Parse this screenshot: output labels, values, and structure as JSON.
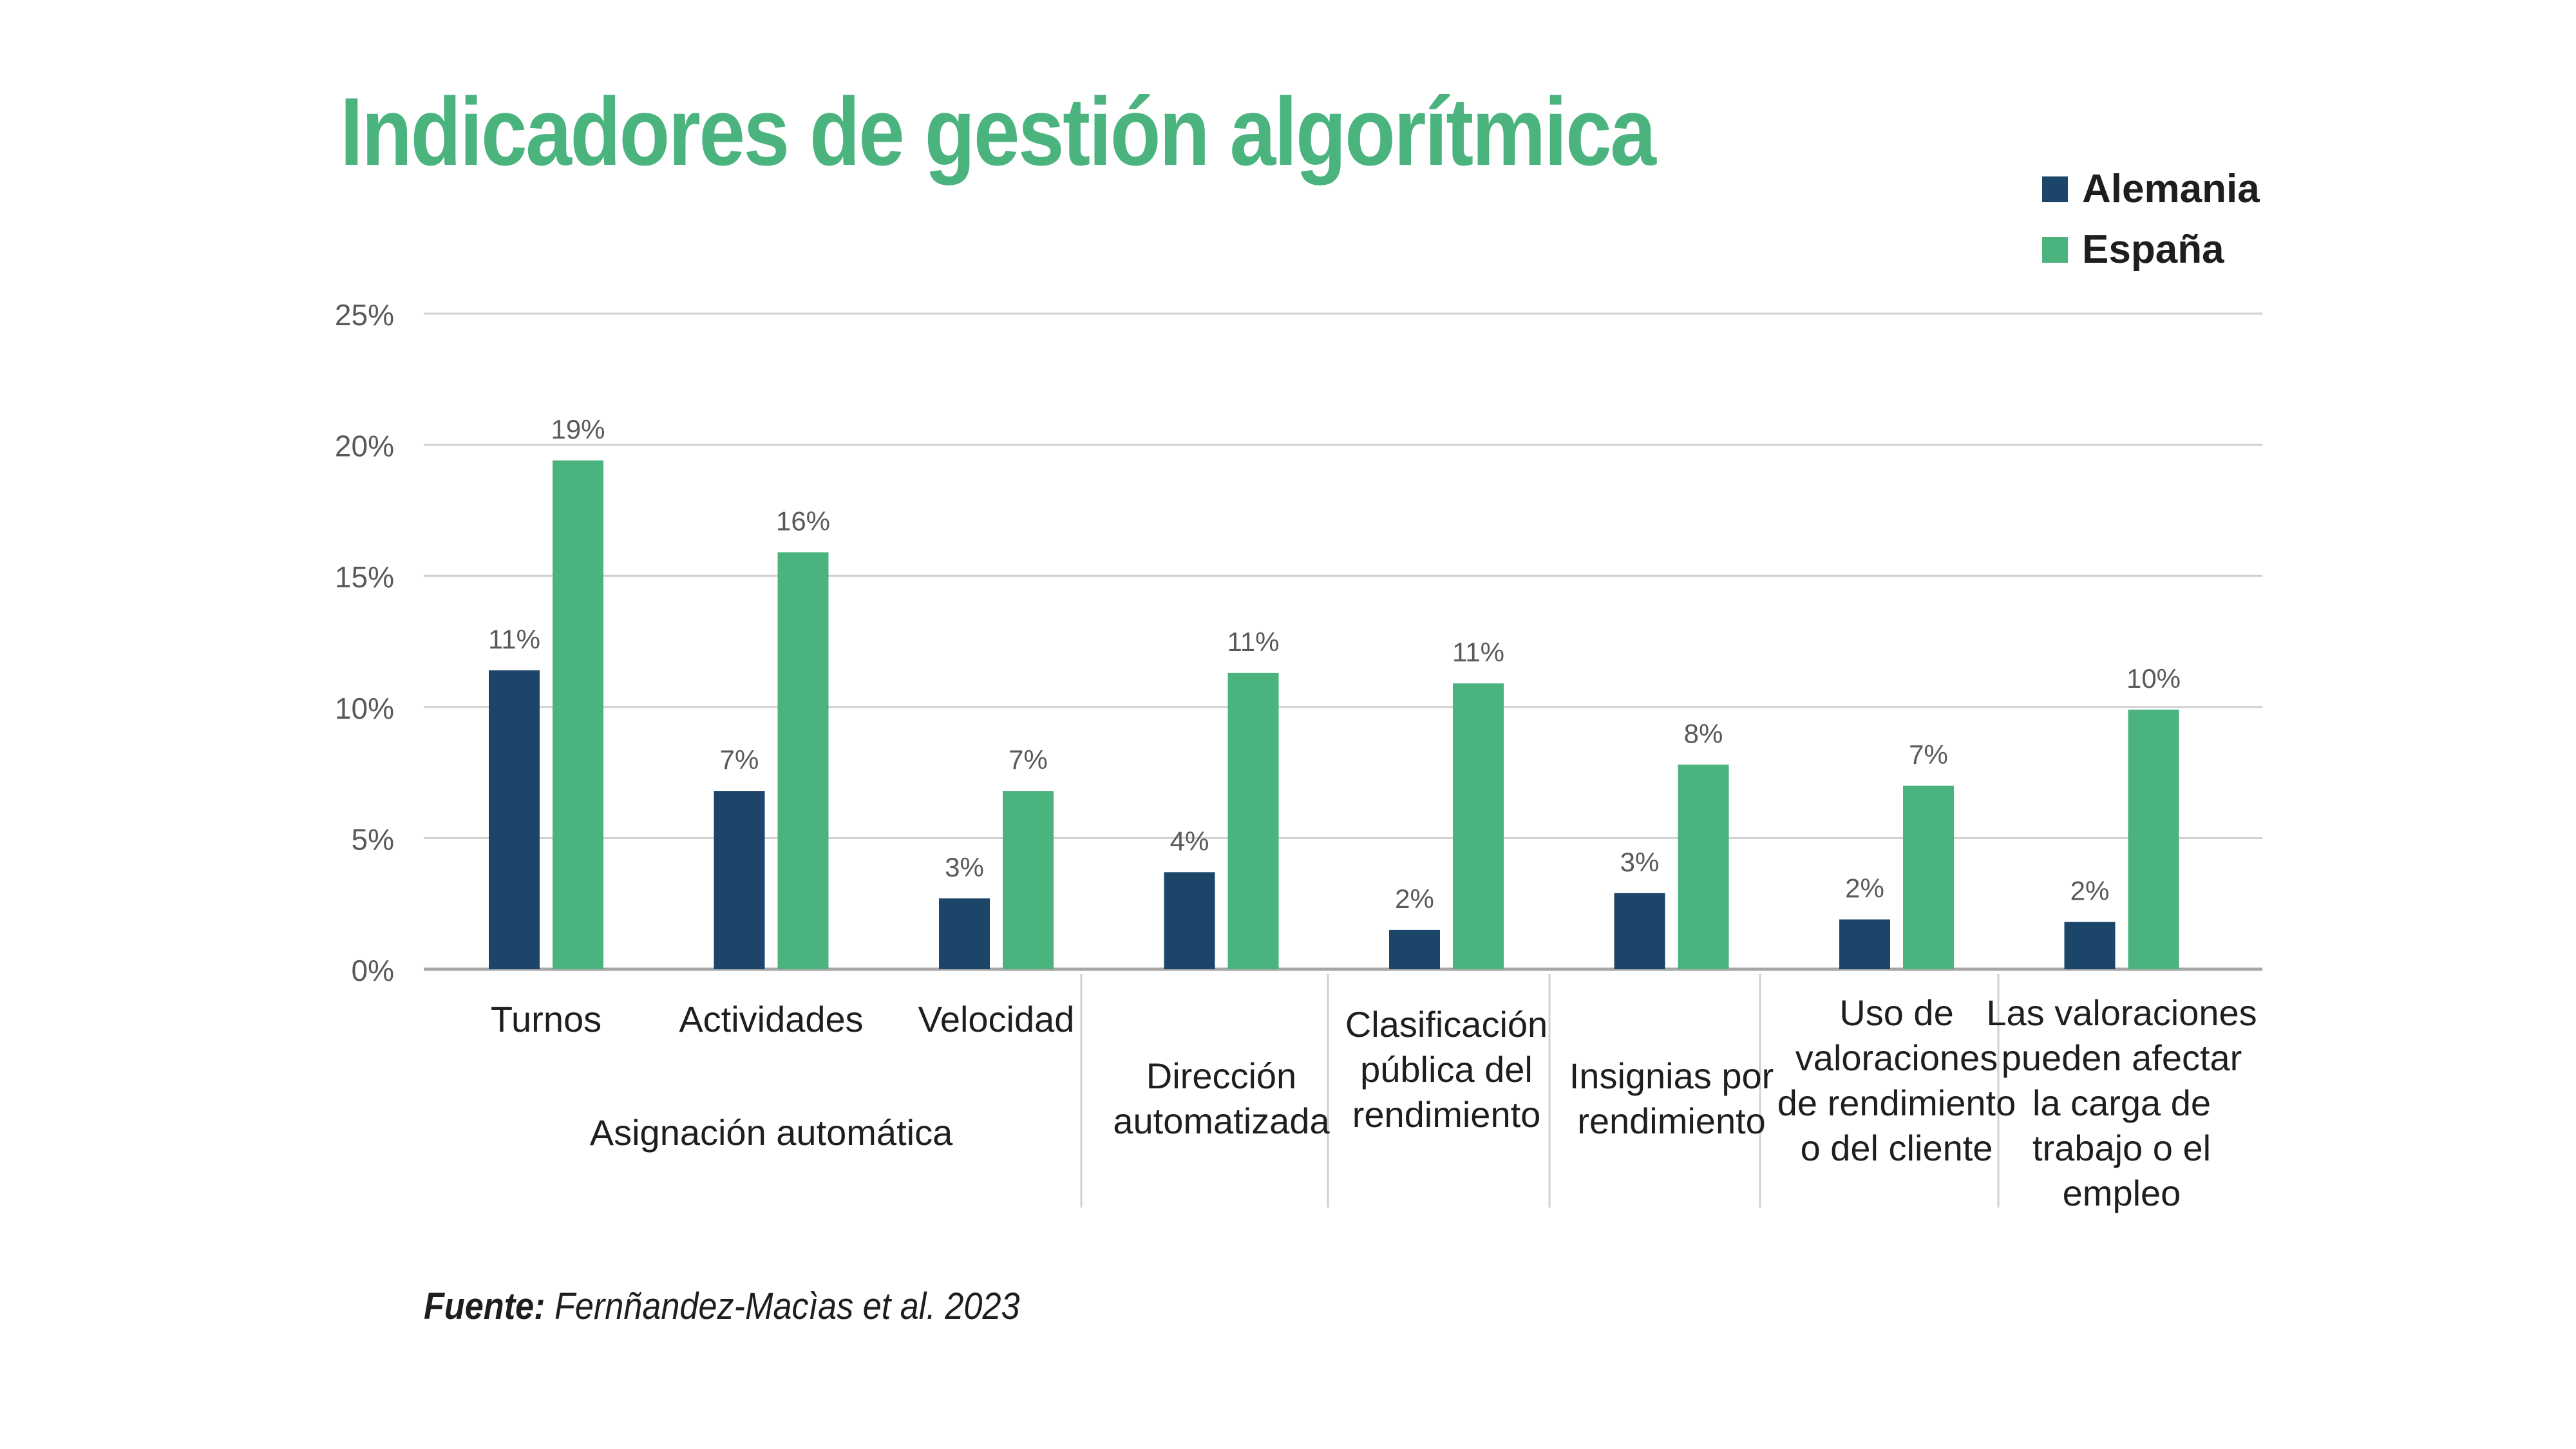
{
  "chart_data": {
    "type": "bar",
    "title": "Indicadores de gestión algorítmica",
    "xlabel": "",
    "ylabel": "",
    "ylim": [
      0,
      25
    ],
    "yticks": [
      0,
      5,
      10,
      15,
      20,
      25
    ],
    "ytick_labels": [
      "0%",
      "5%",
      "10%",
      "15%",
      "20%",
      "25%"
    ],
    "grid": true,
    "legend_position": "top-right",
    "categories": [
      [
        "Turnos"
      ],
      [
        "Actividades"
      ],
      [
        "Velocidad"
      ],
      [
        "Dirección",
        "automatizada"
      ],
      [
        "Clasificación",
        "pública del",
        "rendimiento"
      ],
      [
        "Insignias por",
        "rendimiento"
      ],
      [
        "Uso de",
        "valoraciones",
        "de rendimiento",
        "o del cliente"
      ],
      [
        "Las valoraciones",
        "pueden afectar",
        "la carga de",
        "trabajo o el",
        "empleo"
      ]
    ],
    "category_group": {
      "label": "Asignación automática",
      "members": [
        0,
        1,
        2
      ]
    },
    "series": [
      {
        "name": "Alemania",
        "color": "#1b4569",
        "values": [
          11.4,
          6.8,
          2.7,
          3.7,
          1.5,
          2.9,
          1.9,
          1.8
        ],
        "labels": [
          "11%",
          "7%",
          "3%",
          "4%",
          "2%",
          "3%",
          "2%",
          "2%"
        ]
      },
      {
        "name": "España",
        "color": "#4bb37e",
        "values": [
          19.4,
          15.9,
          6.8,
          11.3,
          10.9,
          7.8,
          7.0,
          9.9
        ],
        "labels": [
          "19%",
          "16%",
          "7%",
          "11%",
          "11%",
          "8%",
          "7%",
          "10%"
        ]
      }
    ]
  },
  "footer": {
    "source_label": "Fuente:",
    "source_text": " Fernñandez-Macìas et al. 2023"
  }
}
